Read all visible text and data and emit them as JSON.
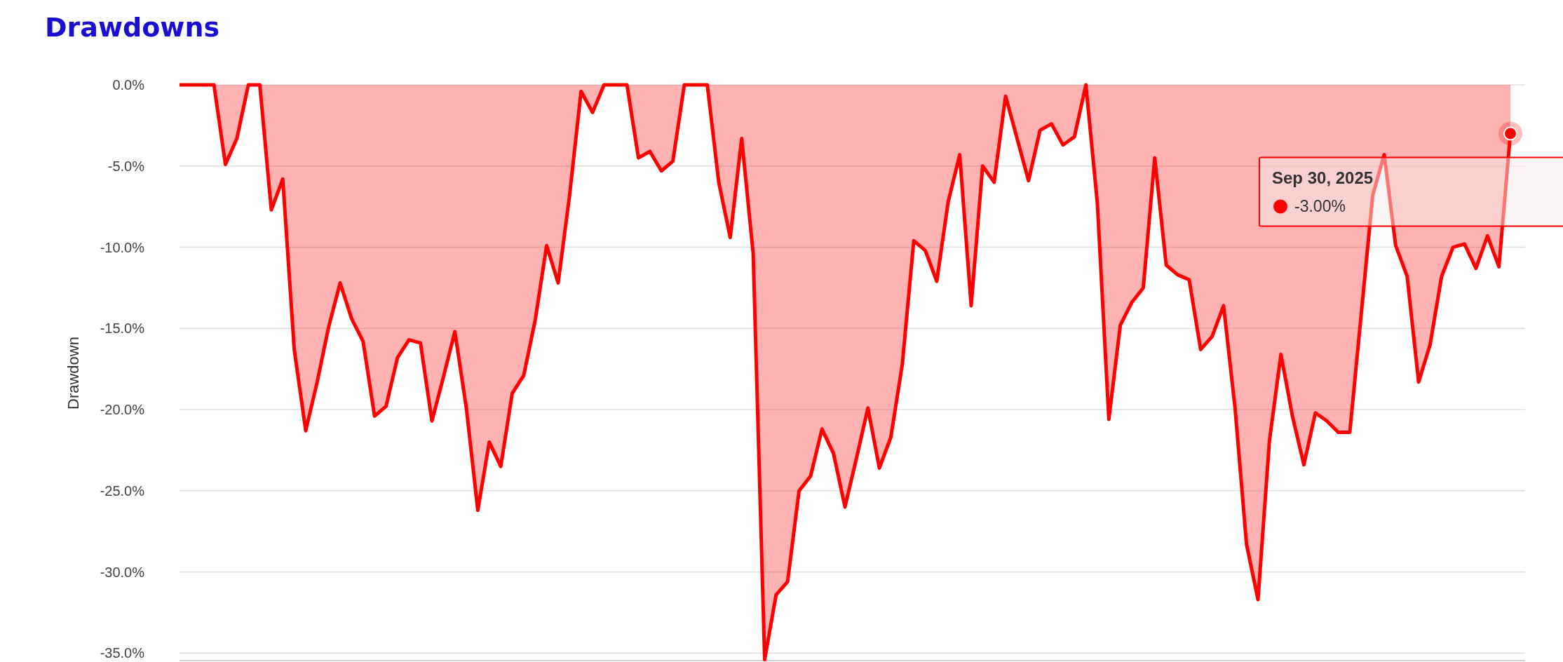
{
  "chart_data": {
    "type": "area",
    "title": "Drawdowns",
    "ylabel": "Drawdown",
    "categories": [
      null,
      null,
      null,
      null,
      null,
      null,
      null,
      null,
      null,
      null,
      null,
      null,
      null,
      null,
      null,
      null,
      null,
      null,
      null,
      null,
      null,
      null,
      null,
      null,
      null,
      null,
      null,
      null,
      null,
      null,
      null,
      null,
      null,
      null,
      null,
      null,
      null,
      null,
      null,
      null,
      null,
      null,
      null,
      null,
      null,
      null,
      null,
      null,
      null,
      null,
      null,
      null,
      null,
      null,
      null,
      null,
      null,
      null,
      null,
      null,
      null,
      null,
      null,
      null,
      null,
      null,
      null,
      null,
      null,
      null,
      null,
      null,
      null,
      null,
      null,
      null,
      null,
      null,
      null,
      null,
      null,
      null,
      null,
      null,
      null,
      null,
      null,
      null,
      null,
      null,
      null,
      null,
      null,
      null,
      null,
      null,
      null,
      null,
      null,
      null,
      null,
      null,
      null,
      null,
      null,
      null,
      null,
      null,
      null,
      null,
      null,
      null,
      null,
      null,
      null,
      null,
      null
    ],
    "series": [
      {
        "color": "#ff0000",
        "values": [
          0,
          0,
          0,
          0,
          -4.9,
          -3.3,
          0,
          0,
          -7.7,
          -5.8,
          -16.3,
          -21.3,
          -18.3,
          -14.9,
          -12.2,
          -14.4,
          -15.8,
          -20.4,
          -19.8,
          -16.8,
          -15.7,
          -15.9,
          -20.7,
          -18.0,
          -15.2,
          -19.9,
          -26.2,
          -22.0,
          -23.5,
          -19.0,
          -17.9,
          -14.5,
          -9.9,
          -12.2,
          -6.8,
          -0.4,
          -1.7,
          0,
          0,
          0,
          -4.5,
          -4.1,
          -5.3,
          -4.7,
          0,
          0,
          0,
          -6.0,
          -9.4,
          -3.3,
          -10.4,
          -35.4,
          -31.4,
          -30.6,
          -25.0,
          -24.1,
          -21.2,
          -22.7,
          -26.0,
          -23.0,
          -19.9,
          -23.6,
          -21.7,
          -17.2,
          -9.6,
          -10.2,
          -12.1,
          -7.2,
          -4.3,
          -13.6,
          -5.0,
          -6.0,
          -0.7,
          -3.3,
          -5.9,
          -2.8,
          -2.4,
          -3.7,
          -3.2,
          0,
          -7.3,
          -20.6,
          -14.8,
          -13.4,
          -12.5,
          -4.5,
          -11.1,
          -11.7,
          -12.0,
          -16.3,
          -15.5,
          -13.6,
          -19.9,
          -28.3,
          -31.7,
          -21.9,
          -16.6,
          -20.4,
          -23.4,
          -20.2,
          -20.7,
          -21.4,
          -21.4,
          -14.1,
          -6.8,
          -4.3,
          -9.9,
          -11.8,
          -18.3,
          -16.0,
          -11.8,
          -10.0,
          -9.8,
          -11.3,
          -9.3,
          -11.2,
          -3.0
        ]
      }
    ],
    "ylim": [
      -35.5,
      0
    ],
    "yticks": [
      {
        "value": 0,
        "label": "0.0%"
      },
      {
        "value": -5,
        "label": "-5.0%"
      },
      {
        "value": -10,
        "label": "-10.0%"
      },
      {
        "value": -15,
        "label": "-15.0%"
      },
      {
        "value": -20,
        "label": "-20.0%"
      },
      {
        "value": -25,
        "label": "-25.0%"
      },
      {
        "value": -30,
        "label": "-30.0%"
      },
      {
        "value": -35,
        "label": "-35.0%"
      }
    ],
    "grid": "y",
    "annotations": [
      "Sep 30, 2025",
      "-3.00%"
    ]
  }
}
